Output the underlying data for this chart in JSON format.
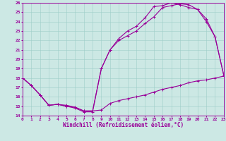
{
  "xlabel": "Windchill (Refroidissement éolien,°C)",
  "xlim": [
    0,
    23
  ],
  "ylim": [
    14,
    26
  ],
  "yticks": [
    14,
    15,
    16,
    17,
    18,
    19,
    20,
    21,
    22,
    23,
    24,
    25,
    26
  ],
  "xticks": [
    0,
    1,
    2,
    3,
    4,
    5,
    6,
    7,
    8,
    9,
    10,
    11,
    12,
    13,
    14,
    15,
    16,
    17,
    18,
    19,
    20,
    21,
    22,
    23
  ],
  "bg_color": "#cce8e4",
  "line_color": "#990099",
  "line1_x": [
    0,
    1,
    2,
    3,
    4,
    5,
    6,
    7,
    8,
    9,
    10,
    11,
    12,
    13,
    14,
    15,
    16,
    17,
    18,
    19,
    20,
    21,
    22,
    23
  ],
  "line1_y": [
    18,
    17.2,
    16.2,
    15.1,
    15.2,
    15.0,
    14.9,
    14.5,
    14.5,
    14.6,
    15.3,
    15.6,
    15.8,
    16.0,
    16.2,
    16.5,
    16.8,
    17.0,
    17.2,
    17.5,
    17.7,
    17.8,
    18.0,
    18.2
  ],
  "line2_x": [
    0,
    1,
    2,
    3,
    4,
    5,
    6,
    7,
    8,
    9,
    10,
    11,
    12,
    13,
    14,
    15,
    16,
    17,
    18,
    19,
    20,
    21,
    22,
    23
  ],
  "line2_y": [
    18,
    17.2,
    16.2,
    15.1,
    15.2,
    15.0,
    14.8,
    14.4,
    14.4,
    19.0,
    21.0,
    22.0,
    22.5,
    23.0,
    23.8,
    24.5,
    25.5,
    25.7,
    25.9,
    25.8,
    25.3,
    24.0,
    22.4,
    18.3
  ],
  "line3_x": [
    0,
    1,
    2,
    3,
    4,
    5,
    6,
    7,
    8,
    9,
    10,
    11,
    12,
    13,
    14,
    15,
    16,
    17,
    18,
    19,
    20,
    21,
    22,
    23
  ],
  "line3_y": [
    18,
    17.2,
    16.2,
    15.1,
    15.2,
    15.1,
    14.9,
    14.5,
    14.5,
    19.0,
    21.0,
    22.2,
    23.0,
    23.5,
    24.4,
    25.6,
    25.7,
    26.0,
    25.8,
    25.5,
    25.3,
    24.3,
    22.4,
    18.3
  ]
}
